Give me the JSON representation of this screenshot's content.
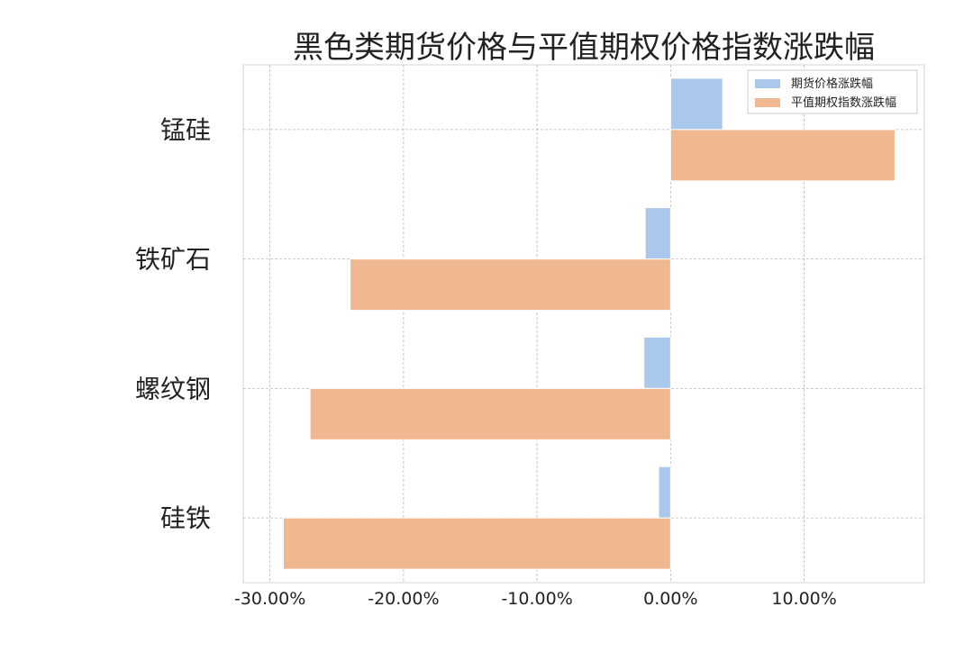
{
  "chart_data": {
    "type": "bar",
    "orientation": "horizontal",
    "title": "黑色类期货价格与平值期权价格指数涨跌幅",
    "categories": [
      "锰硅",
      "铁矿石",
      "螺纹钢",
      "硅铁"
    ],
    "series": [
      {
        "name": "期货价格涨跌幅",
        "color": "#a9c8ec",
        "values": [
          3.9,
          -1.9,
          -2.0,
          -0.9
        ]
      },
      {
        "name": "平值期权指数涨跌幅",
        "color": "#f0b891",
        "values": [
          16.8,
          -24.0,
          -27.0,
          -29.0
        ]
      }
    ],
    "xlim": [
      -32.0,
      19.0
    ],
    "xticks": [
      -30,
      -20,
      -10,
      0,
      10
    ],
    "xtick_labels": [
      "-30.00%",
      "-20.00%",
      "-10.00%",
      "0.00%",
      "10.00%"
    ],
    "grid": true,
    "legend_position": "top-right"
  }
}
